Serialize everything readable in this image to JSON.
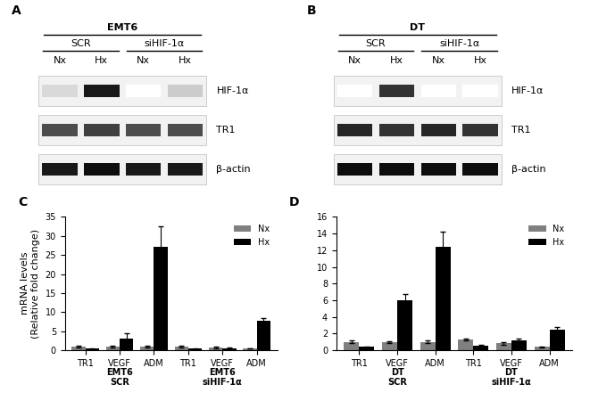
{
  "blots": [
    {
      "title": "A",
      "cell_line": "EMT6",
      "groups": [
        "SCR",
        "siHIF-1α"
      ],
      "conditions": [
        "Nx",
        "Hx",
        "Nx",
        "Hx"
      ],
      "rows": [
        {
          "label": "HIF-1α",
          "band_intensity": [
            0.15,
            0.9,
            0.0,
            0.2
          ]
        },
        {
          "label": "TR1",
          "band_intensity": [
            0.7,
            0.75,
            0.7,
            0.7
          ]
        },
        {
          "label": "β-actin",
          "band_intensity": [
            0.9,
            0.95,
            0.9,
            0.9
          ]
        }
      ]
    },
    {
      "title": "B",
      "cell_line": "DT",
      "groups": [
        "SCR",
        "siHIF-1α"
      ],
      "conditions": [
        "Nx",
        "Hx",
        "Nx",
        "Hx"
      ],
      "rows": [
        {
          "label": "HIF-1α",
          "band_intensity": [
            0.0,
            0.8,
            0.0,
            0.0
          ]
        },
        {
          "label": "TR1",
          "band_intensity": [
            0.85,
            0.8,
            0.85,
            0.8
          ]
        },
        {
          "label": "β-actin",
          "band_intensity": [
            0.95,
            0.95,
            0.95,
            0.95
          ]
        }
      ]
    }
  ],
  "chart_data": [
    {
      "type": "bar",
      "title": "C",
      "y_label": "mRNA levels\n(Relative fold change)",
      "groups": [
        {
          "label": "EMT6\nSCR",
          "categories": [
            "TR1",
            "VEGF",
            "ADM"
          ]
        },
        {
          "label": "EMT6\nsiHIF-1α",
          "categories": [
            "TR1",
            "VEGF",
            "ADM"
          ]
        }
      ],
      "series": [
        {
          "name": "Nx",
          "color": "#808080",
          "values": [
            1.0,
            1.0,
            1.0,
            1.0,
            0.8,
            0.5
          ],
          "errors": [
            0.2,
            0.3,
            0.2,
            0.2,
            0.2,
            0.1
          ]
        },
        {
          "name": "Hx",
          "color": "#000000",
          "values": [
            0.4,
            3.1,
            27.2,
            0.4,
            0.5,
            7.8
          ],
          "errors": [
            0.1,
            1.4,
            5.4,
            0.2,
            0.2,
            0.7
          ]
        }
      ],
      "ylim": [
        0,
        35
      ],
      "yticks": [
        0,
        5,
        10,
        15,
        20,
        25,
        30,
        35
      ],
      "legend": "upper right"
    },
    {
      "type": "bar",
      "title": "D",
      "groups": [
        {
          "label": "DT\nSCR",
          "categories": [
            "TR1",
            "VEGF",
            "ADM"
          ]
        },
        {
          "label": "DT\nsiHIF-1α",
          "categories": [
            "TR1",
            "VEGF",
            "ADM"
          ]
        }
      ],
      "series": [
        {
          "name": "Nx",
          "color": "#808080",
          "values": [
            1.0,
            1.0,
            1.0,
            1.3,
            0.85,
            0.4
          ],
          "errors": [
            0.15,
            0.1,
            0.15,
            0.15,
            0.15,
            0.02
          ]
        },
        {
          "name": "Hx",
          "color": "#000000",
          "values": [
            0.4,
            6.0,
            12.4,
            0.5,
            1.2,
            2.5
          ],
          "errors": [
            0.05,
            0.7,
            1.8,
            0.15,
            0.15,
            0.3
          ]
        }
      ],
      "ylim": [
        0,
        16
      ],
      "yticks": [
        0,
        2,
        4,
        6,
        8,
        10,
        12,
        14,
        16
      ],
      "legend": "upper right"
    }
  ]
}
